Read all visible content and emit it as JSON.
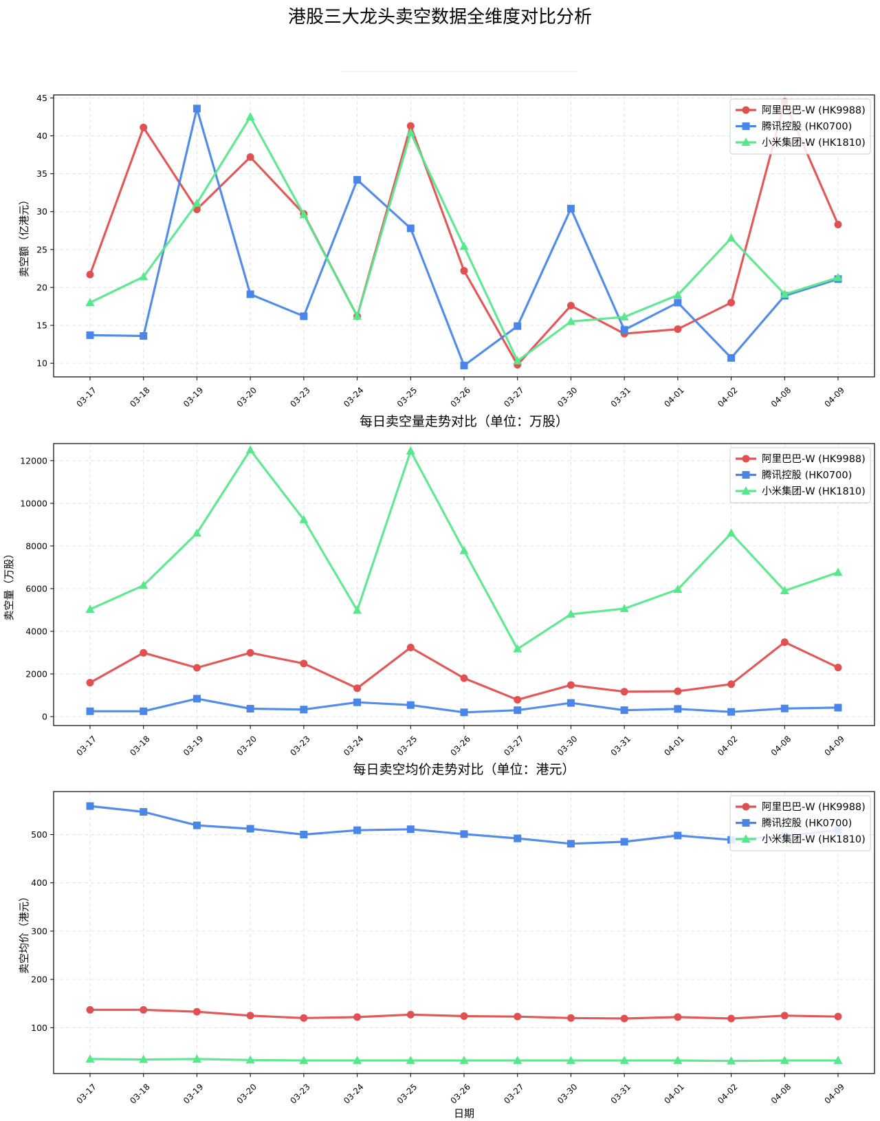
{
  "page": {
    "suptitle": "港股三大龙头卖空数据全维度对比分析"
  },
  "chart_data": [
    {
      "type": "line",
      "title": "",
      "xlabel": "",
      "ylabel": "卖空额（亿港元）",
      "categories": [
        "03-17",
        "03-18",
        "03-19",
        "03-20",
        "03-23",
        "03-24",
        "03-25",
        "03-26",
        "03-27",
        "03-30",
        "03-31",
        "04-01",
        "04-02",
        "04-08",
        "04-09"
      ],
      "ylim": [
        8.2,
        45.4
      ],
      "yticks": [
        10,
        15,
        20,
        25,
        30,
        35,
        40,
        45
      ],
      "grid": true,
      "legend": "top-right",
      "series": [
        {
          "name": "阿里巴巴-W (HK9988)",
          "color": "#e05050",
          "marker": "circle",
          "values": [
            21.7,
            41.1,
            30.3,
            37.2,
            29.7,
            16.2,
            41.3,
            22.2,
            9.8,
            17.6,
            13.9,
            14.5,
            18.0,
            44.5,
            28.3
          ]
        },
        {
          "name": "腾讯控股 (HK0700)",
          "color": "#4a86e8",
          "marker": "square",
          "values": [
            13.7,
            13.6,
            43.6,
            19.1,
            16.2,
            34.2,
            27.8,
            9.7,
            14.9,
            30.4,
            14.4,
            18.0,
            10.7,
            18.9,
            21.1
          ]
        },
        {
          "name": "小米集团-W (HK1810)",
          "color": "#57e88c",
          "marker": "triangle",
          "values": [
            18.0,
            21.4,
            31.1,
            42.5,
            29.6,
            16.2,
            40.4,
            25.4,
            10.3,
            15.5,
            16.1,
            19.0,
            26.5,
            19.1,
            21.3
          ]
        }
      ]
    },
    {
      "type": "line",
      "title": "每日卖空量走势对比（单位：万股）",
      "xlabel": "",
      "ylabel": "卖空量（万股）",
      "categories": [
        "03-17",
        "03-18",
        "03-19",
        "03-20",
        "03-23",
        "03-24",
        "03-25",
        "03-26",
        "03-27",
        "03-30",
        "03-31",
        "04-01",
        "04-02",
        "04-08",
        "04-09"
      ],
      "ylim": [
        -420,
        12800
      ],
      "yticks": [
        0,
        2000,
        4000,
        6000,
        8000,
        10000,
        12000
      ],
      "grid": true,
      "legend": "top-right",
      "series": [
        {
          "name": "阿里巴巴-W (HK9988)",
          "color": "#e05050",
          "marker": "circle",
          "values": [
            1590,
            2990,
            2290,
            2990,
            2490,
            1330,
            3240,
            1800,
            790,
            1480,
            1170,
            1190,
            1520,
            3490,
            2300
          ]
        },
        {
          "name": "腾讯控股 (HK0700)",
          "color": "#4a86e8",
          "marker": "square",
          "values": [
            250,
            250,
            840,
            370,
            330,
            670,
            540,
            200,
            300,
            640,
            300,
            360,
            220,
            380,
            420
          ]
        },
        {
          "name": "小米集团-W (HK1810)",
          "color": "#57e88c",
          "marker": "triangle",
          "values": [
            5030,
            6150,
            8600,
            12500,
            9230,
            4980,
            12450,
            7780,
            3170,
            4800,
            5060,
            5960,
            8600,
            5900,
            6760
          ]
        }
      ]
    },
    {
      "type": "line",
      "title": "每日卖空均价走势对比（单位：港元）",
      "xlabel": "日期",
      "ylabel": "卖空均价（港元）",
      "categories": [
        "03-17",
        "03-18",
        "03-19",
        "03-20",
        "03-23",
        "03-24",
        "03-25",
        "03-26",
        "03-27",
        "03-30",
        "03-31",
        "04-01",
        "04-02",
        "04-08",
        "04-09"
      ],
      "ylim": [
        5,
        589
      ],
      "yticks": [
        100,
        200,
        300,
        400,
        500
      ],
      "grid": true,
      "legend": "top-right",
      "series": [
        {
          "name": "阿里巴巴-W (HK9988)",
          "color": "#e05050",
          "marker": "circle",
          "values": [
            137,
            137,
            133,
            125,
            120,
            122,
            127,
            124,
            123,
            120,
            119,
            122,
            119,
            125,
            123
          ]
        },
        {
          "name": "腾讯控股 (HK0700)",
          "color": "#4a86e8",
          "marker": "square",
          "values": [
            559,
            547,
            519,
            512,
            500,
            509,
            511,
            501,
            492,
            481,
            485,
            498,
            489,
            497,
            509
          ]
        },
        {
          "name": "小米集团-W (HK1810)",
          "color": "#57e88c",
          "marker": "triangle",
          "values": [
            35,
            34,
            35,
            33,
            32,
            32,
            32,
            32,
            32,
            32,
            32,
            32,
            31,
            32,
            32
          ]
        }
      ]
    }
  ]
}
